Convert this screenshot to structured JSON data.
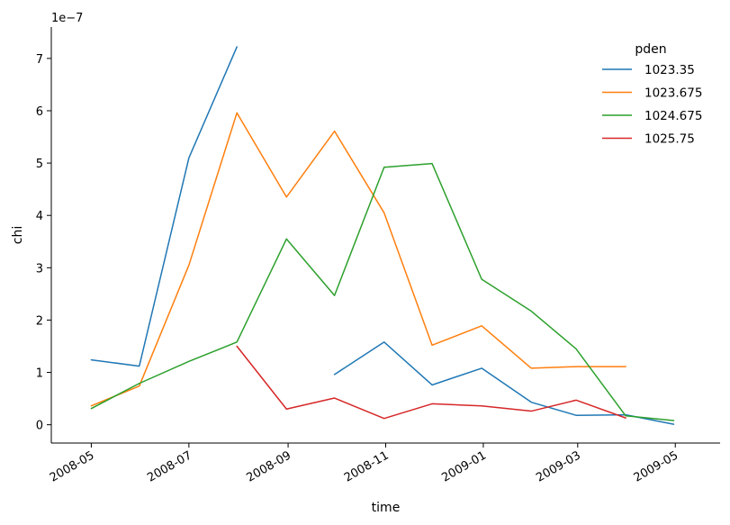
{
  "chart_data": {
    "type": "line",
    "xlabel": "time",
    "ylabel": "chi",
    "y_offset_label": "1e−7",
    "y_scale": 1e-07,
    "xlim": [
      "2008-04-06",
      "2009-05-29"
    ],
    "ylim": [
      -3.5e-08,
      7.6e-07
    ],
    "grid": false,
    "legend_title": "pden",
    "legend_position": "top-right",
    "x_ticks": [
      {
        "date": "2008-05-01",
        "label": "2008-05"
      },
      {
        "date": "2008-07-01",
        "label": "2008-07"
      },
      {
        "date": "2008-09-01",
        "label": "2008-09"
      },
      {
        "date": "2008-11-01",
        "label": "2008-11"
      },
      {
        "date": "2009-01-01",
        "label": "2009-01"
      },
      {
        "date": "2009-03-01",
        "label": "2009-03"
      },
      {
        "date": "2009-05-01",
        "label": "2009-05"
      }
    ],
    "y_ticks": [
      {
        "value": 0,
        "label": "0"
      },
      {
        "value": 1e-07,
        "label": "1"
      },
      {
        "value": 2e-07,
        "label": "2"
      },
      {
        "value": 3e-07,
        "label": "3"
      },
      {
        "value": 4e-07,
        "label": "4"
      },
      {
        "value": 5e-07,
        "label": "5"
      },
      {
        "value": 6e-07,
        "label": "6"
      },
      {
        "value": 7e-07,
        "label": "7"
      }
    ],
    "series": [
      {
        "name": "1023.35",
        "color": "#1f77b4",
        "points": [
          [
            "2008-05-01",
            1.24e-07
          ],
          [
            "2008-05-31",
            1.12e-07
          ],
          [
            "2008-07-01",
            5.1e-07
          ],
          [
            "2008-07-31",
            7.22e-07
          ],
          [
            "2008-08-31",
            null
          ],
          [
            "2008-09-30",
            9.6e-08
          ],
          [
            "2008-10-31",
            1.58e-07
          ],
          [
            "2008-11-30",
            7.6e-08
          ],
          [
            "2008-12-31",
            1.08e-07
          ],
          [
            "2009-01-31",
            4.3e-08
          ],
          [
            "2009-02-28",
            1.8e-08
          ],
          [
            "2009-03-31",
            1.9e-08
          ],
          [
            "2009-04-30",
            1e-09
          ]
        ]
      },
      {
        "name": "1023.675",
        "color": "#ff7f0e",
        "points": [
          [
            "2008-05-01",
            3.6e-08
          ],
          [
            "2008-05-31",
            7.4e-08
          ],
          [
            "2008-07-01",
            3.05e-07
          ],
          [
            "2008-07-31",
            5.96e-07
          ],
          [
            "2008-08-31",
            4.35e-07
          ],
          [
            "2008-09-30",
            5.61e-07
          ],
          [
            "2008-10-31",
            4.05e-07
          ],
          [
            "2008-11-30",
            1.52e-07
          ],
          [
            "2008-12-31",
            1.89e-07
          ],
          [
            "2009-01-31",
            1.08e-07
          ],
          [
            "2009-02-28",
            1.11e-07
          ],
          [
            "2009-03-31",
            1.11e-07
          ]
        ]
      },
      {
        "name": "1024.675",
        "color": "#2ca02c",
        "points": [
          [
            "2008-05-01",
            3.1e-08
          ],
          [
            "2008-05-31",
            7.9e-08
          ],
          [
            "2008-07-01",
            1.21e-07
          ],
          [
            "2008-07-31",
            1.58e-07
          ],
          [
            "2008-08-31",
            3.55e-07
          ],
          [
            "2008-09-30",
            2.47e-07
          ],
          [
            "2008-10-31",
            4.92e-07
          ],
          [
            "2008-11-30",
            4.99e-07
          ],
          [
            "2008-12-31",
            2.78e-07
          ],
          [
            "2009-01-31",
            2.17e-07
          ],
          [
            "2009-02-28",
            1.45e-07
          ],
          [
            "2009-03-31",
            1.7e-08
          ],
          [
            "2009-04-30",
            8e-09
          ]
        ]
      },
      {
        "name": "1025.75",
        "color": "#d62728",
        "points": [
          [
            "2008-07-31",
            1.5e-07
          ],
          [
            "2008-08-31",
            3e-08
          ],
          [
            "2008-09-30",
            5.1e-08
          ],
          [
            "2008-10-31",
            1.2e-08
          ],
          [
            "2008-11-30",
            4e-08
          ],
          [
            "2008-12-31",
            3.6e-08
          ],
          [
            "2009-01-31",
            2.6e-08
          ],
          [
            "2009-02-28",
            4.7e-08
          ],
          [
            "2009-03-31",
            1.3e-08
          ]
        ]
      }
    ]
  }
}
